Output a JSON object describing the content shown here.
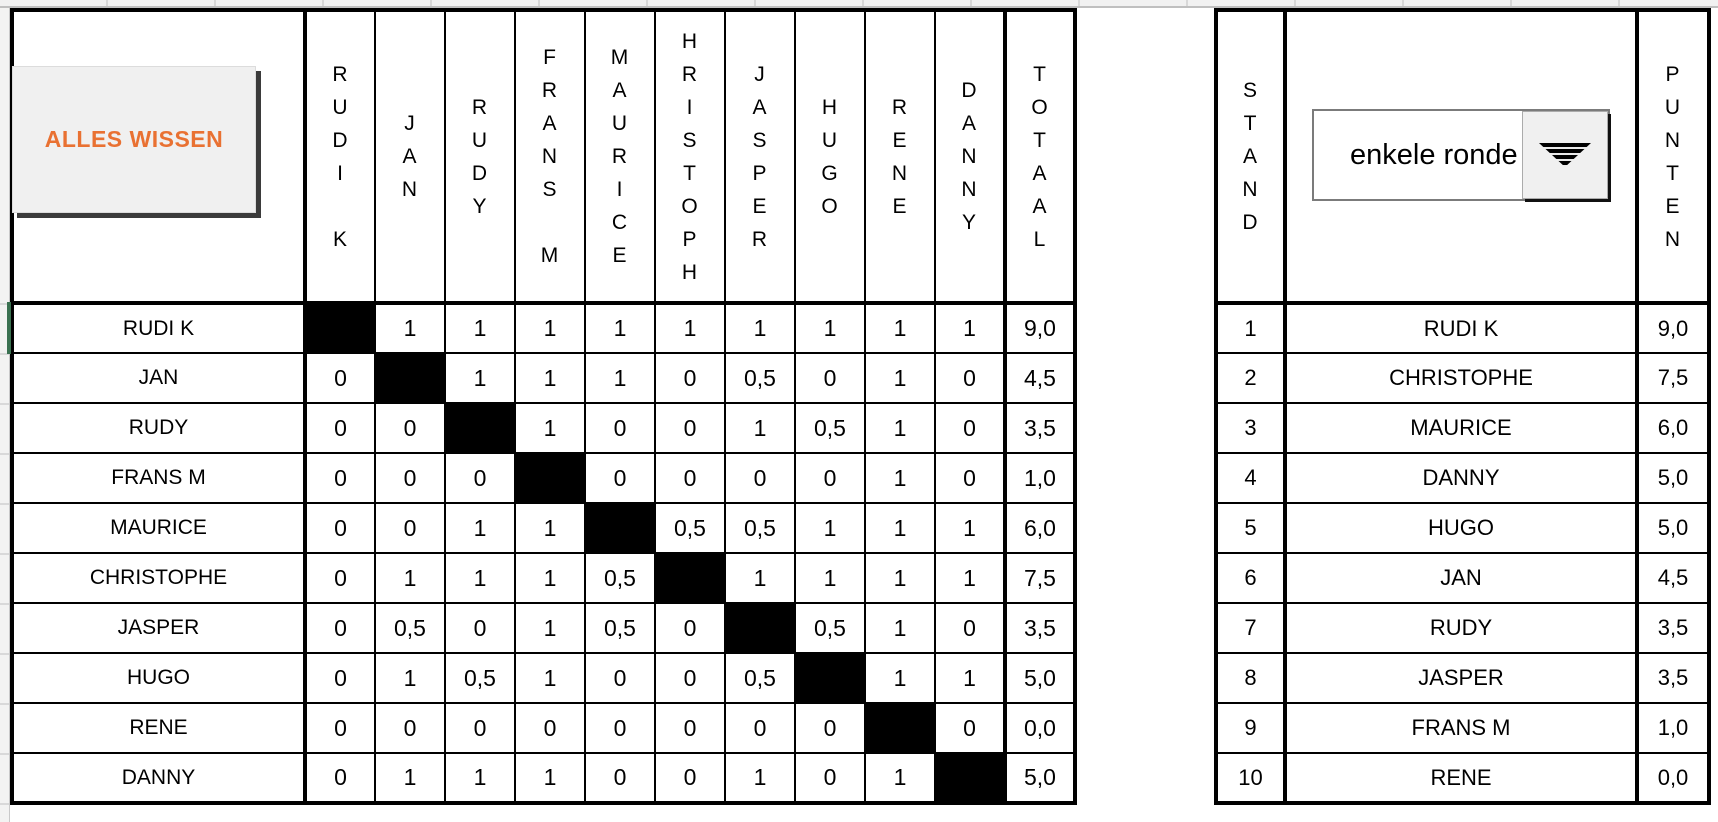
{
  "colors": {
    "accent_orange": "#E97132",
    "selection_green": "#3A7150",
    "button_face": "#F0F0F0"
  },
  "buttons": {
    "alles_wissen_label": "ALLES WISSEN"
  },
  "crosstable": {
    "col_headers": [
      "RUDI K",
      "JAN",
      "RUDY",
      "FRANS M",
      "MAURICE",
      "HRISTOPH",
      "JASPER",
      "HUGO",
      "RENE",
      "DANNY",
      "TOTAAL"
    ],
    "rows": [
      {
        "name": "RUDI K",
        "cells": [
          null,
          "1",
          "1",
          "1",
          "1",
          "1",
          "1",
          "1",
          "1",
          "1"
        ],
        "total": "9,0"
      },
      {
        "name": "JAN",
        "cells": [
          "0",
          null,
          "1",
          "1",
          "1",
          "0",
          "0,5",
          "0",
          "1",
          "0"
        ],
        "total": "4,5"
      },
      {
        "name": "RUDY",
        "cells": [
          "0",
          "0",
          null,
          "1",
          "0",
          "0",
          "1",
          "0,5",
          "1",
          "0"
        ],
        "total": "3,5"
      },
      {
        "name": "FRANS M",
        "cells": [
          "0",
          "0",
          "0",
          null,
          "0",
          "0",
          "0",
          "0",
          "1",
          "0"
        ],
        "total": "1,0"
      },
      {
        "name": "MAURICE",
        "cells": [
          "0",
          "0",
          "1",
          "1",
          null,
          "0,5",
          "0,5",
          "1",
          "1",
          "1"
        ],
        "total": "6,0"
      },
      {
        "name": "CHRISTOPHE",
        "cells": [
          "0",
          "1",
          "1",
          "1",
          "0,5",
          null,
          "1",
          "1",
          "1",
          "1"
        ],
        "total": "7,5"
      },
      {
        "name": "JASPER",
        "cells": [
          "0",
          "0,5",
          "0",
          "1",
          "0,5",
          "0",
          null,
          "0,5",
          "1",
          "0"
        ],
        "total": "3,5"
      },
      {
        "name": "HUGO",
        "cells": [
          "0",
          "1",
          "0,5",
          "1",
          "0",
          "0",
          "0,5",
          null,
          "1",
          "1"
        ],
        "total": "5,0"
      },
      {
        "name": "RENE",
        "cells": [
          "0",
          "0",
          "0",
          "0",
          "0",
          "0",
          "0",
          "0",
          null,
          "0"
        ],
        "total": "0,0"
      },
      {
        "name": "DANNY",
        "cells": [
          "0",
          "1",
          "1",
          "1",
          "0",
          "0",
          "1",
          "0",
          "1",
          null
        ],
        "total": "5,0"
      }
    ]
  },
  "standings": {
    "header_left": "STAND",
    "header_right": "PUNTEN",
    "dropdown_value": "enkele ronde",
    "rows": [
      {
        "rank": "1",
        "name": "RUDI K",
        "points": "9,0"
      },
      {
        "rank": "2",
        "name": "CHRISTOPHE",
        "points": "7,5"
      },
      {
        "rank": "3",
        "name": "MAURICE",
        "points": "6,0"
      },
      {
        "rank": "4",
        "name": "DANNY",
        "points": "5,0"
      },
      {
        "rank": "5",
        "name": "HUGO",
        "points": "5,0"
      },
      {
        "rank": "6",
        "name": "JAN",
        "points": "4,5"
      },
      {
        "rank": "7",
        "name": "RUDY",
        "points": "3,5"
      },
      {
        "rank": "8",
        "name": "JASPER",
        "points": "3,5"
      },
      {
        "rank": "9",
        "name": "FRANS M",
        "points": "1,0"
      },
      {
        "rank": "10",
        "name": "RENE",
        "points": "0,0"
      }
    ]
  }
}
